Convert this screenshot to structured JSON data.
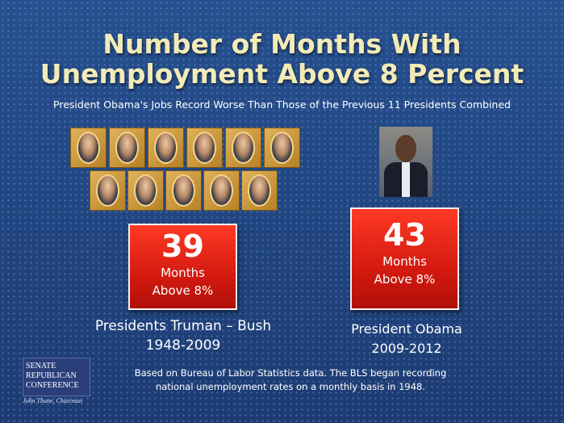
{
  "title": [
    "Number of Months With",
    "Unemployment Above 8 Percent"
  ],
  "subtitle": "President Obama's Jobs Record Worse Than Those of the Previous 11 Presidents Combined",
  "panels": [
    {
      "number": 39,
      "unit_line1": "Months",
      "unit_line2": "Above 8%",
      "label_line1": "Presidents Truman – Bush",
      "label_line2": "1948-2009"
    },
    {
      "number": 43,
      "unit_line1": "Months",
      "unit_line2": "Above 8%",
      "label_line1": "President Obama",
      "label_line2": "2009-2012"
    }
  ],
  "logo": {
    "line1": "SENATE",
    "line2": "REPUBLICAN",
    "line3": "CONFERENCE",
    "chair": "John Thune, Chairman"
  },
  "footnote": [
    "Based on Bureau of Labor Statistics data. The BLS began recording",
    "national unemployment rates on a monthly basis in 1948."
  ]
}
